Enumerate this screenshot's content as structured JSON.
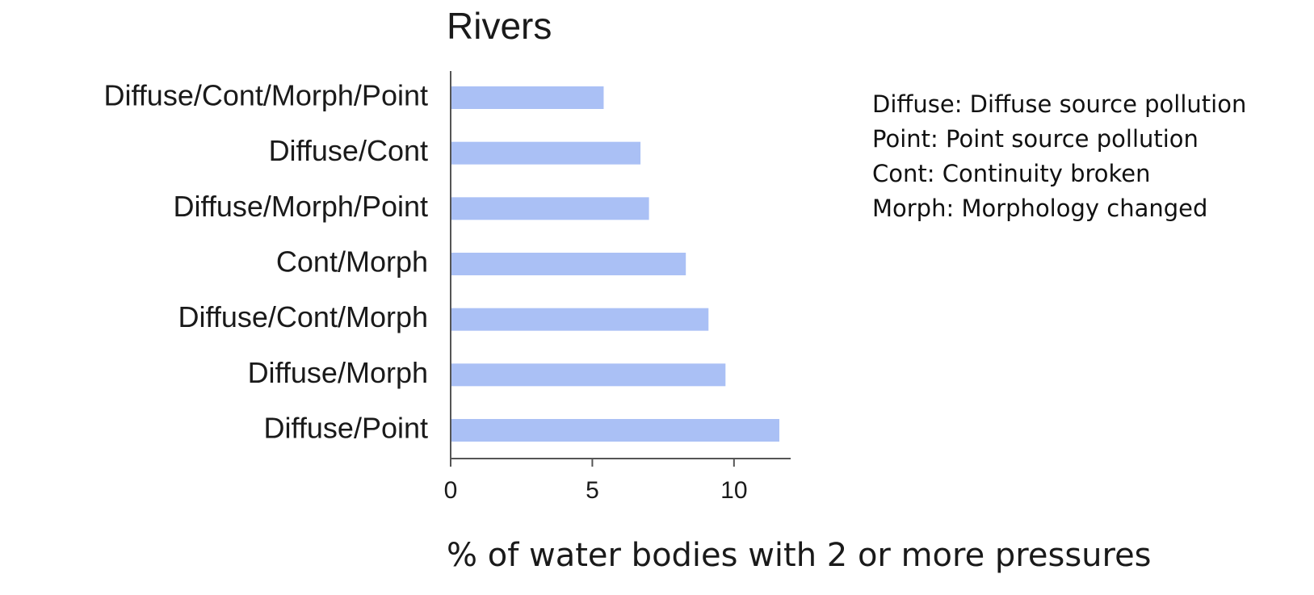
{
  "chart_data": {
    "type": "barh",
    "title": "Rivers",
    "categories": [
      "Diffuse/Cont/Morph/Point",
      "Diffuse/Cont",
      "Diffuse/Morph/Point",
      "Cont/Morph",
      "Diffuse/Cont/Morph",
      "Diffuse/Morph",
      "Diffuse/Point"
    ],
    "values": [
      5.4,
      6.7,
      7.0,
      8.3,
      9.1,
      9.7,
      11.6
    ],
    "color": "#aac0f5",
    "xlim": [
      0,
      12
    ],
    "xticks": [
      0,
      5,
      10
    ],
    "xlabel": "% of water bodies with 2 or more pressures",
    "notes": [
      "Diffuse: Diffuse source pollution",
      "Point: Point source pollution",
      "Cont: Continuity broken",
      "Morph: Morphology changed"
    ]
  }
}
